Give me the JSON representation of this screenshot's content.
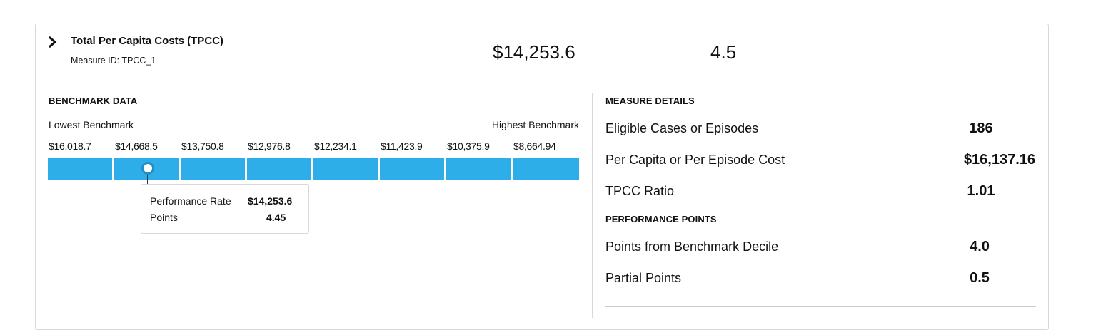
{
  "header": {
    "title": "Total Per Capita Costs (TPCC)",
    "measure_id": "Measure ID: TPCC_1",
    "performance_rate": "$14,253.6",
    "points": "4.5"
  },
  "benchmark": {
    "heading": "BENCHMARK DATA",
    "lowest_label": "Lowest Benchmark",
    "highest_label": "Highest Benchmark",
    "deciles": [
      "$16,018.7",
      "$14,668.5",
      "$13,750.8",
      "$12,976.8",
      "$12,234.1",
      "$11,423.9",
      "$10,375.9",
      "$8,664.94"
    ],
    "bar_color": "#2eaee9",
    "marker_decile_index": 2,
    "tooltip": {
      "rate_label": "Performance Rate",
      "rate_value": "$14,253.6",
      "points_label": "Points",
      "points_value": "4.45"
    }
  },
  "measure_details": {
    "heading": "MEASURE DETAILS",
    "rows": [
      {
        "label": "Eligible Cases or Episodes",
        "value": "186"
      },
      {
        "label": "Per Capita or Per Episode Cost",
        "value": "$16,137.16"
      },
      {
        "label": "TPCC Ratio",
        "value": "1.01"
      }
    ]
  },
  "performance_points": {
    "heading": "PERFORMANCE POINTS",
    "rows": [
      {
        "label": "Points from Benchmark Decile",
        "value": "4.0"
      },
      {
        "label": "Partial Points",
        "value": "0.5"
      }
    ]
  }
}
